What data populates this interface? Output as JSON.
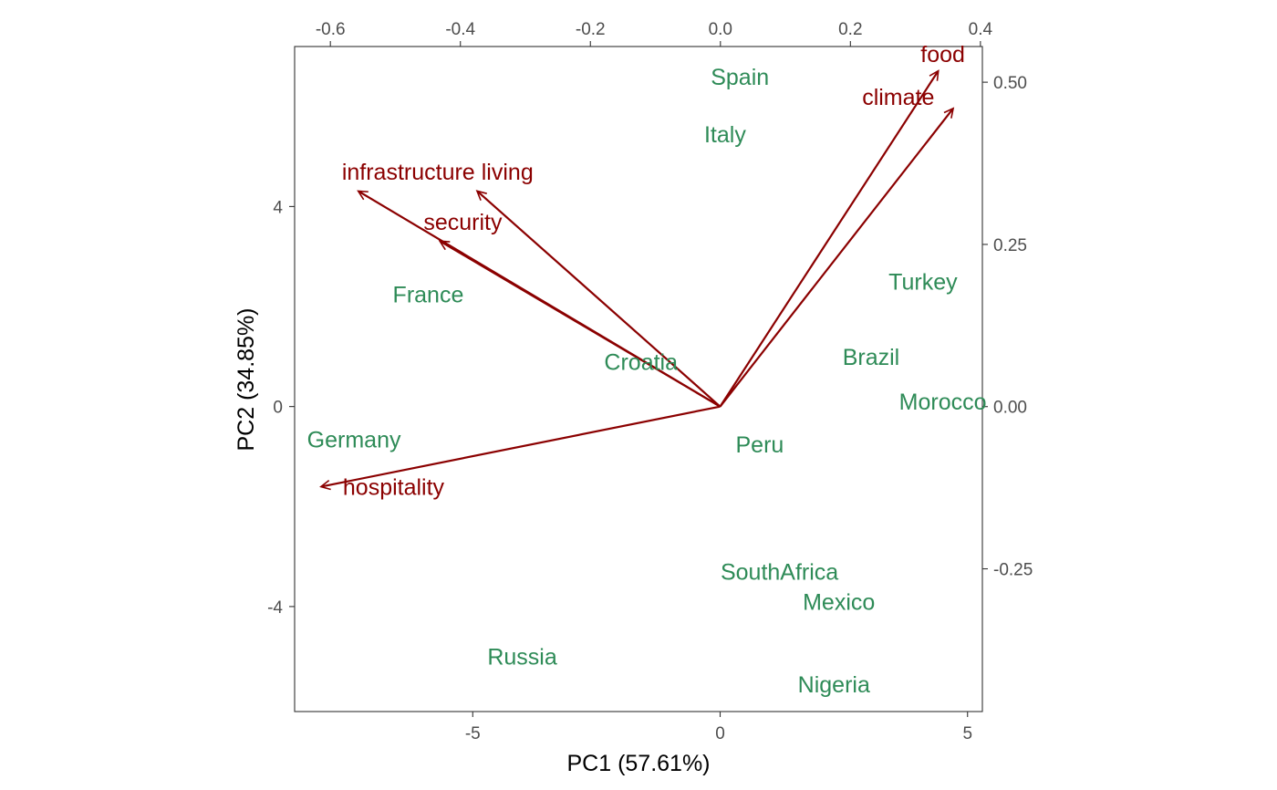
{
  "chart_data": {
    "type": "scatter",
    "subtype": "pca-biplot",
    "title": "",
    "xlabel": "PC1 (57.61%)",
    "ylabel": "PC2 (34.85%)",
    "xlim": [
      -8.6,
      5.3
    ],
    "ylim": [
      -6.1,
      7.2
    ],
    "x_ticks": [
      -5,
      0,
      5
    ],
    "y_ticks": [
      -4,
      0,
      4
    ],
    "secondary_x": {
      "lim": [
        -0.655,
        0.403
      ],
      "ticks": [
        -0.6,
        -0.4,
        -0.2,
        0.0,
        0.2,
        0.4
      ],
      "tick_labels": [
        "-0.6",
        "-0.4",
        "-0.2",
        "0.0",
        "0.2",
        "0.4"
      ]
    },
    "secondary_y": {
      "lim": [
        -0.47,
        0.555
      ],
      "ticks": [
        -0.25,
        0.0,
        0.25,
        0.5
      ],
      "tick_labels": [
        "-0.25",
        "0.00",
        "0.25",
        "0.50"
      ]
    },
    "grid": false,
    "observation_color": "#2e8b57",
    "variable_color": "#8b0000",
    "observations": [
      {
        "name": "Spain",
        "x": 0.4,
        "y": 6.6
      },
      {
        "name": "Italy",
        "x": 0.1,
        "y": 5.45
      },
      {
        "name": "France",
        "x": -5.9,
        "y": 2.25
      },
      {
        "name": "Croatia",
        "x": -1.6,
        "y": 0.9
      },
      {
        "name": "Turkey",
        "x": 4.1,
        "y": 2.5
      },
      {
        "name": "Brazil",
        "x": 3.05,
        "y": 1.0
      },
      {
        "name": "Morocco",
        "x": 4.5,
        "y": 0.1
      },
      {
        "name": "Germany",
        "x": -7.4,
        "y": -0.65
      },
      {
        "name": "Peru",
        "x": 0.8,
        "y": -0.75
      },
      {
        "name": "SouthAfrica",
        "x": 1.2,
        "y": -3.3
      },
      {
        "name": "Mexico",
        "x": 2.4,
        "y": -3.9
      },
      {
        "name": "Russia",
        "x": -4.0,
        "y": -5.0
      },
      {
        "name": "Nigeria",
        "x": 2.3,
        "y": -5.55
      }
    ],
    "loadings": [
      {
        "name": "food",
        "x": 4.4,
        "y": 6.7,
        "label_x": 4.5,
        "label_y": 7.05
      },
      {
        "name": "climate",
        "x": 4.7,
        "y": 5.95,
        "label_x": 3.6,
        "label_y": 6.2
      },
      {
        "name": "infrastructure",
        "x": -7.3,
        "y": 4.3,
        "label_x": -6.3,
        "label_y": 4.7
      },
      {
        "name": "living",
        "x": -4.9,
        "y": 4.3,
        "label_x": -4.3,
        "label_y": 4.7
      },
      {
        "name": "security",
        "x": -5.65,
        "y": 3.3,
        "label_x": -5.2,
        "label_y": 3.7
      },
      {
        "name": "hospitality",
        "x": -8.05,
        "y": -1.6,
        "label_x": -6.6,
        "label_y": -1.6
      }
    ]
  }
}
